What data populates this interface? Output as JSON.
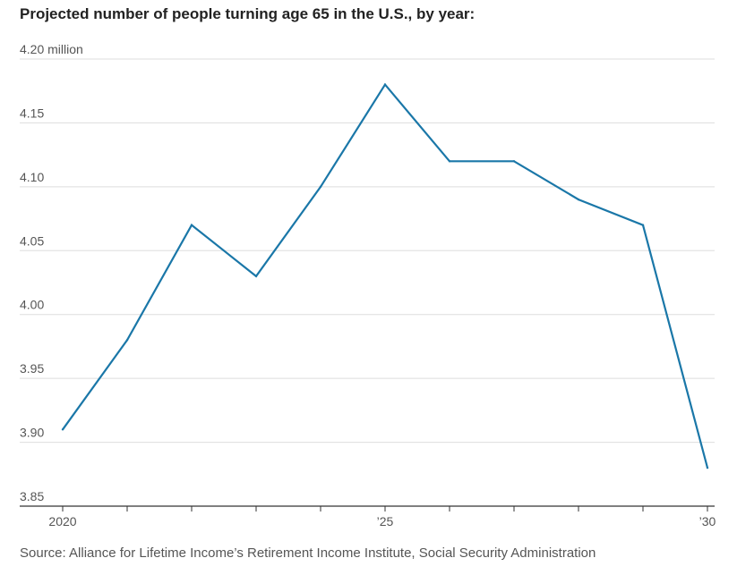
{
  "title": "Projected number of people turning age 65 in the U.S., by year:",
  "source": "Source: Alliance for Lifetime Income’s Retirement Income Institute, Social Security Administration",
  "colors": {
    "line": "#1a77a8",
    "grid": "#dddddd",
    "baseline": "#333333"
  },
  "chart_data": {
    "type": "line",
    "title": "Projected number of people turning age 65 in the U.S., by year:",
    "xlabel": "",
    "ylabel": "",
    "unit": "million",
    "x": [
      2020,
      2021,
      2022,
      2023,
      2024,
      2025,
      2026,
      2027,
      2028,
      2029,
      2030
    ],
    "series": [
      {
        "values": [
          3.91,
          3.98,
          4.07,
          4.03,
          4.1,
          4.18,
          4.12,
          4.12,
          4.09,
          4.07,
          3.88
        ]
      }
    ],
    "ylim": [
      3.85,
      4.2
    ],
    "xlim": [
      2020,
      2030
    ],
    "y_ticks": [
      {
        "value": 4.2,
        "label": "4.20 million"
      },
      {
        "value": 4.15,
        "label": "4.15"
      },
      {
        "value": 4.1,
        "label": "4.10"
      },
      {
        "value": 4.05,
        "label": "4.05"
      },
      {
        "value": 4.0,
        "label": "4.00"
      },
      {
        "value": 3.95,
        "label": "3.95"
      },
      {
        "value": 3.9,
        "label": "3.90"
      },
      {
        "value": 3.85,
        "label": "3.85"
      }
    ],
    "x_ticks": [
      {
        "value": 2020,
        "label": "2020"
      },
      {
        "value": 2021,
        "label": ""
      },
      {
        "value": 2022,
        "label": ""
      },
      {
        "value": 2023,
        "label": ""
      },
      {
        "value": 2024,
        "label": ""
      },
      {
        "value": 2025,
        "label": "’25"
      },
      {
        "value": 2026,
        "label": ""
      },
      {
        "value": 2027,
        "label": ""
      },
      {
        "value": 2028,
        "label": ""
      },
      {
        "value": 2029,
        "label": ""
      },
      {
        "value": 2030,
        "label": "’30"
      }
    ],
    "grid": true,
    "legend": "none"
  }
}
